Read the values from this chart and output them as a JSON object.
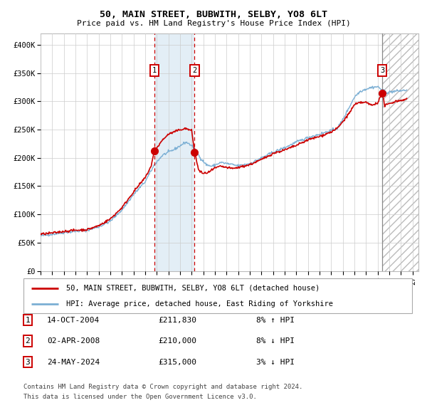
{
  "title": "50, MAIN STREET, BUBWITH, SELBY, YO8 6LT",
  "subtitle": "Price paid vs. HM Land Registry's House Price Index (HPI)",
  "ylim": [
    0,
    420000
  ],
  "xlim_start": 1995.0,
  "xlim_end": 2027.5,
  "yticks": [
    0,
    50000,
    100000,
    150000,
    200000,
    250000,
    300000,
    350000,
    400000
  ],
  "ytick_labels": [
    "£0",
    "£50K",
    "£100K",
    "£150K",
    "£200K",
    "£250K",
    "£300K",
    "£350K",
    "£400K"
  ],
  "xticks": [
    1995,
    1996,
    1997,
    1998,
    1999,
    2000,
    2001,
    2002,
    2003,
    2004,
    2005,
    2006,
    2007,
    2008,
    2009,
    2010,
    2011,
    2012,
    2013,
    2014,
    2015,
    2016,
    2017,
    2018,
    2019,
    2020,
    2021,
    2022,
    2023,
    2024,
    2025,
    2026,
    2027
  ],
  "hpi_color": "#7bafd4",
  "sale_color": "#cc0000",
  "grid_color": "#cccccc",
  "sale1_x": 2004.79,
  "sale1_y": 211830,
  "sale2_x": 2008.25,
  "sale2_y": 210000,
  "sale3_x": 2024.39,
  "sale3_y": 315000,
  "shade_x1": 2004.79,
  "shade_x2": 2008.25,
  "hatch_x": 2024.39,
  "hatch_end": 2027.5,
  "footer_line1": "Contains HM Land Registry data © Crown copyright and database right 2024.",
  "footer_line2": "This data is licensed under the Open Government Licence v3.0.",
  "legend1_text": "50, MAIN STREET, BUBWITH, SELBY, YO8 6LT (detached house)",
  "legend2_text": "HPI: Average price, detached house, East Riding of Yorkshire",
  "table_entries": [
    {
      "num": "1",
      "date": "14-OCT-2004",
      "price": "£211,830",
      "hpi": "8% ↑ HPI"
    },
    {
      "num": "2",
      "date": "02-APR-2008",
      "price": "£210,000",
      "hpi": "8% ↓ HPI"
    },
    {
      "num": "3",
      "date": "24-MAY-2024",
      "price": "£315,000",
      "hpi": "3% ↓ HPI"
    }
  ],
  "hpi_anchors": [
    [
      1995.0,
      62000
    ],
    [
      1996.0,
      65000
    ],
    [
      1997.0,
      68000
    ],
    [
      1998.0,
      70000
    ],
    [
      1999.0,
      72000
    ],
    [
      2000.0,
      78000
    ],
    [
      2001.0,
      88000
    ],
    [
      2002.0,
      108000
    ],
    [
      2003.0,
      135000
    ],
    [
      2004.0,
      158000
    ],
    [
      2004.79,
      188000
    ],
    [
      2005.5,
      205000
    ],
    [
      2006.5,
      215000
    ],
    [
      2007.5,
      228000
    ],
    [
      2008.0,
      222000
    ],
    [
      2008.25,
      215000
    ],
    [
      2008.75,
      200000
    ],
    [
      2009.25,
      188000
    ],
    [
      2009.75,
      185000
    ],
    [
      2010.5,
      192000
    ],
    [
      2011.0,
      190000
    ],
    [
      2012.0,
      186000
    ],
    [
      2013.0,
      190000
    ],
    [
      2014.0,
      200000
    ],
    [
      2015.0,
      210000
    ],
    [
      2016.0,
      218000
    ],
    [
      2017.0,
      228000
    ],
    [
      2018.0,
      236000
    ],
    [
      2019.0,
      242000
    ],
    [
      2020.5,
      252000
    ],
    [
      2021.0,
      268000
    ],
    [
      2021.5,
      288000
    ],
    [
      2022.0,
      308000
    ],
    [
      2022.5,
      318000
    ],
    [
      2023.0,
      322000
    ],
    [
      2023.5,
      325000
    ],
    [
      2024.0,
      326000
    ],
    [
      2024.39,
      320000
    ],
    [
      2024.75,
      316000
    ],
    [
      2025.5,
      318000
    ],
    [
      2026.5,
      320000
    ]
  ],
  "sale_anchors": [
    [
      1995.0,
      65000
    ],
    [
      1996.0,
      67000
    ],
    [
      1997.0,
      70000
    ],
    [
      1998.0,
      72000
    ],
    [
      1999.0,
      73000
    ],
    [
      2000.0,
      80000
    ],
    [
      2001.0,
      92000
    ],
    [
      2002.0,
      112000
    ],
    [
      2003.0,
      140000
    ],
    [
      2004.0,
      165000
    ],
    [
      2004.5,
      185000
    ],
    [
      2004.79,
      211830
    ],
    [
      2005.5,
      232000
    ],
    [
      2006.0,
      242000
    ],
    [
      2007.0,
      250000
    ],
    [
      2007.5,
      252000
    ],
    [
      2008.0,
      248000
    ],
    [
      2008.25,
      210000
    ],
    [
      2008.6,
      178000
    ],
    [
      2009.0,
      172000
    ],
    [
      2009.5,
      175000
    ],
    [
      2010.0,
      182000
    ],
    [
      2010.5,
      185000
    ],
    [
      2011.0,
      183000
    ],
    [
      2011.5,
      181000
    ],
    [
      2012.0,
      183000
    ],
    [
      2013.0,
      188000
    ],
    [
      2014.0,
      197000
    ],
    [
      2015.0,
      208000
    ],
    [
      2016.0,
      214000
    ],
    [
      2017.0,
      222000
    ],
    [
      2018.0,
      232000
    ],
    [
      2019.0,
      238000
    ],
    [
      2020.0,
      246000
    ],
    [
      2020.5,
      252000
    ],
    [
      2021.0,
      264000
    ],
    [
      2021.5,
      278000
    ],
    [
      2022.0,
      294000
    ],
    [
      2022.5,
      298000
    ],
    [
      2023.0,
      298000
    ],
    [
      2023.5,
      293000
    ],
    [
      2024.0,
      298000
    ],
    [
      2024.39,
      315000
    ],
    [
      2024.6,
      292000
    ],
    [
      2025.0,
      296000
    ],
    [
      2025.5,
      300000
    ],
    [
      2026.5,
      304000
    ]
  ]
}
